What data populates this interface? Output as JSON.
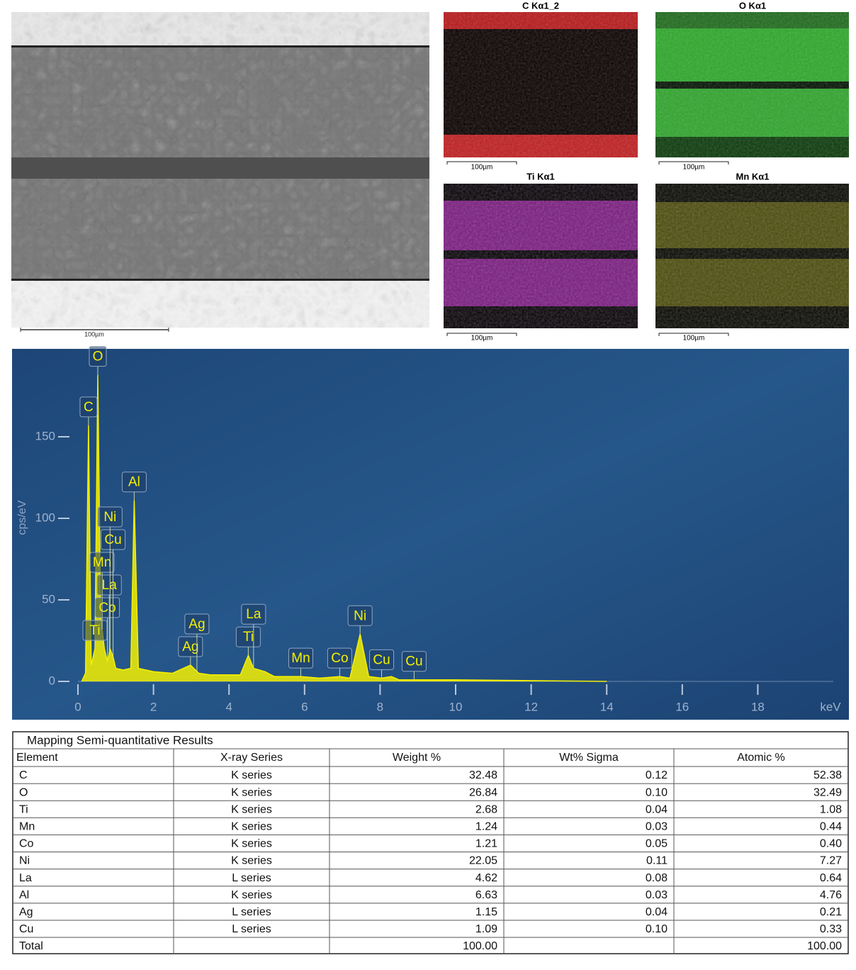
{
  "sem": {
    "scale_label": "100µm"
  },
  "maps": [
    {
      "title": "C Kα1_2",
      "scale_label": "100µm"
    },
    {
      "title": "O Kα1",
      "scale_label": "100µm"
    },
    {
      "title": "Ti Kα1",
      "scale_label": "100µm"
    },
    {
      "title": "Mn Kα1",
      "scale_label": "100µm"
    }
  ],
  "chart_data": {
    "type": "spectrum",
    "y_label": "cps/eV",
    "x_label": "keV",
    "color": "#f5f000",
    "xlim": [
      0,
      20
    ],
    "ylim": [
      0,
      200
    ],
    "xticks": [
      0,
      2,
      4,
      6,
      8,
      10,
      12,
      14,
      16,
      18
    ],
    "yticks": [
      0,
      50,
      100,
      150
    ],
    "x": [
      0.1,
      0.2,
      0.28,
      0.35,
      0.45,
      0.525,
      0.6,
      0.7,
      0.78,
      0.85,
      0.93,
      1.0,
      1.2,
      1.4,
      1.49,
      1.6,
      2.0,
      2.5,
      2.98,
      3.2,
      3.5,
      4.0,
      4.3,
      4.51,
      4.65,
      4.95,
      5.2,
      5.9,
      6.4,
      6.93,
      7.2,
      7.47,
      7.7,
      8.04,
      8.3,
      8.5,
      10,
      14
    ],
    "values": [
      0,
      5,
      157,
      10,
      20,
      188,
      40,
      20,
      12,
      20,
      15,
      8,
      7,
      8,
      111,
      8,
      6,
      5,
      10,
      5,
      4,
      4,
      4,
      16,
      8,
      6,
      3,
      3,
      2,
      3,
      2,
      29,
      3,
      2,
      3,
      1,
      1,
      0
    ],
    "peaks": [
      {
        "label": "C",
        "x": 0.28
      },
      {
        "label": "O",
        "x": 0.525
      },
      {
        "label": "Ti",
        "x": 0.45
      },
      {
        "label": "Co",
        "x": 0.78
      },
      {
        "label": "La",
        "x": 0.83
      },
      {
        "label": "Mn",
        "x": 0.64
      },
      {
        "label": "Cu",
        "x": 0.93
      },
      {
        "label": "Ni",
        "x": 0.85
      },
      {
        "label": "Al",
        "x": 1.49
      },
      {
        "label": "Ag",
        "x": 2.98
      },
      {
        "label": "Ag",
        "x": 3.15
      },
      {
        "label": "Ti",
        "x": 4.51
      },
      {
        "label": "La",
        "x": 4.65
      },
      {
        "label": "Mn",
        "x": 5.9
      },
      {
        "label": "Co",
        "x": 6.93
      },
      {
        "label": "Ni",
        "x": 7.47
      },
      {
        "label": "Cu",
        "x": 8.04
      },
      {
        "label": "Cu",
        "x": 8.9
      }
    ]
  },
  "table": {
    "title": "Mapping Semi-quantitative Results",
    "header": [
      "Element",
      "X-ray Series",
      "Weight %",
      "Wt% Sigma",
      "Atomic %"
    ],
    "rows": [
      [
        "C",
        "K series",
        "32.48",
        "0.12",
        "52.38"
      ],
      [
        "O",
        "K series",
        "26.84",
        "0.10",
        "32.49"
      ],
      [
        "Ti",
        "K series",
        "2.68",
        "0.04",
        "1.08"
      ],
      [
        "Mn",
        "K series",
        "1.24",
        "0.03",
        "0.44"
      ],
      [
        "Co",
        "K series",
        "1.21",
        "0.05",
        "0.40"
      ],
      [
        "Ni",
        "K series",
        "22.05",
        "0.11",
        "7.27"
      ],
      [
        "La",
        "L series",
        "4.62",
        "0.08",
        "0.64"
      ],
      [
        "Al",
        "K series",
        "6.63",
        "0.03",
        "4.76"
      ],
      [
        "Ag",
        "L series",
        "1.15",
        "0.04",
        "0.21"
      ],
      [
        "Cu",
        "L series",
        "1.09",
        "0.10",
        "0.33"
      ]
    ],
    "total": {
      "label": "Total",
      "weight": "100.00",
      "atomic": "100.00"
    }
  }
}
